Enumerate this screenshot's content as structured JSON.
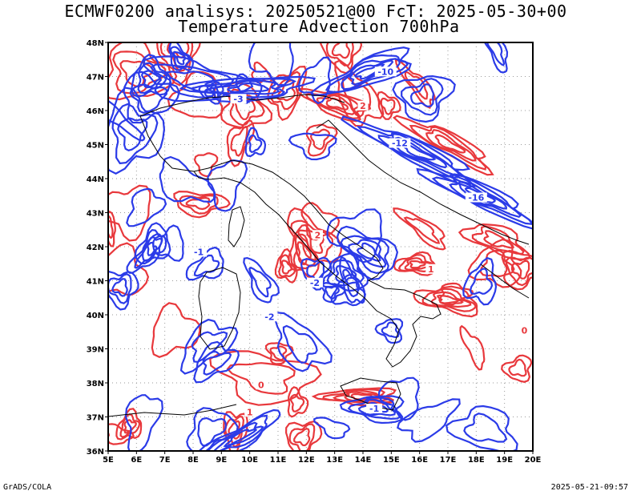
{
  "header": {
    "line1": "ECMWF0200 analisys: 20250521@00 FcT: 2025-05-30+00",
    "line2": "Temperature Advection 700hPa"
  },
  "axes": {
    "lon_labels": [
      "5E",
      "6E",
      "7E",
      "8E",
      "9E",
      "10E",
      "11E",
      "12E",
      "13E",
      "14E",
      "15E",
      "16E",
      "17E",
      "18E",
      "19E",
      "20E"
    ],
    "lat_labels": [
      "48N",
      "47N",
      "46N",
      "45N",
      "44N",
      "43N",
      "42N",
      "41N",
      "40N",
      "39N",
      "38N",
      "37N",
      "36N"
    ],
    "lon_range": [
      5,
      20
    ],
    "lat_range": [
      36,
      48
    ]
  },
  "contour_labels": [
    {
      "text": "-10",
      "lon": 14.8,
      "lat": 47.1,
      "sign": "neg"
    },
    {
      "text": "-12",
      "lon": 15.3,
      "lat": 45.0,
      "sign": "neg"
    },
    {
      "text": "-16",
      "lon": 18.0,
      "lat": 43.4,
      "sign": "neg"
    },
    {
      "text": "-3",
      "lon": 9.6,
      "lat": 46.3,
      "sign": "neg"
    },
    {
      "text": "-1",
      "lon": 8.2,
      "lat": 41.8,
      "sign": "neg"
    },
    {
      "text": "-2",
      "lon": 10.7,
      "lat": 39.9,
      "sign": "neg"
    },
    {
      "text": "-2",
      "lon": 12.3,
      "lat": 40.9,
      "sign": "neg"
    },
    {
      "text": "-1",
      "lon": 14.4,
      "lat": 37.2,
      "sign": "neg"
    },
    {
      "text": "2",
      "lon": 14.0,
      "lat": 46.1,
      "sign": "pos"
    },
    {
      "text": "2",
      "lon": 12.4,
      "lat": 42.3,
      "sign": "pos"
    },
    {
      "text": "1",
      "lon": 16.4,
      "lat": 41.3,
      "sign": "pos"
    },
    {
      "text": "0",
      "lon": 10.4,
      "lat": 37.9,
      "sign": "pos"
    },
    {
      "text": "0",
      "lon": 19.7,
      "lat": 39.5,
      "sign": "pos"
    },
    {
      "text": "1",
      "lon": 10.0,
      "lat": 37.1,
      "sign": "pos"
    }
  ],
  "colors": {
    "negative": "#2b3be8",
    "positive": "#e8383c",
    "coast": "#000000",
    "grid": "#9a9a9a"
  },
  "footer": {
    "left": "GrADS/COLA",
    "right": "2025-05-21-09:57"
  }
}
